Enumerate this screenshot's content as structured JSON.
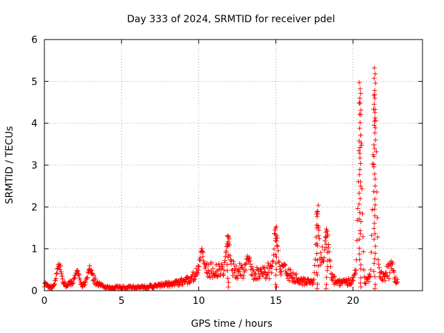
{
  "chart_data": {
    "type": "scatter",
    "title": "Day 333 of 2024, SRMTID for receiver pdel",
    "xlabel": "GPS time / hours",
    "ylabel": "SRMTID / TECUs",
    "xlim": [
      0,
      24.5
    ],
    "ylim": [
      0,
      6
    ],
    "xticks": [
      0,
      5,
      10,
      15,
      20
    ],
    "yticks": [
      0,
      1,
      2,
      3,
      4,
      5,
      6
    ],
    "grid": true,
    "marker": "+",
    "color": "#ff0000",
    "series": [
      {
        "name": "SRMTID",
        "envelope_note": "dense per-epoch samples; dominant levels and spikes",
        "baseline": [
          [
            0.0,
            0.15
          ],
          [
            0.5,
            0.08
          ],
          [
            0.9,
            0.15
          ],
          [
            1.5,
            0.15
          ],
          [
            2.0,
            0.2
          ],
          [
            2.5,
            0.12
          ],
          [
            3.0,
            0.35
          ],
          [
            3.5,
            0.15
          ],
          [
            4.0,
            0.08
          ],
          [
            5.0,
            0.08
          ],
          [
            6.0,
            0.08
          ],
          [
            7.0,
            0.1
          ],
          [
            8.0,
            0.15
          ],
          [
            8.8,
            0.2
          ],
          [
            9.5,
            0.3
          ],
          [
            10.0,
            0.45
          ],
          [
            10.5,
            0.5
          ],
          [
            11.0,
            0.5
          ],
          [
            11.5,
            0.45
          ],
          [
            12.0,
            0.6
          ],
          [
            12.5,
            0.45
          ],
          [
            13.0,
            0.5
          ],
          [
            13.5,
            0.4
          ],
          [
            14.0,
            0.4
          ],
          [
            14.5,
            0.5
          ],
          [
            15.0,
            0.35
          ],
          [
            15.5,
            0.45
          ],
          [
            16.0,
            0.35
          ],
          [
            16.5,
            0.25
          ],
          [
            17.0,
            0.2
          ],
          [
            17.5,
            0.2
          ],
          [
            17.8,
            0.8
          ],
          [
            18.2,
            0.8
          ],
          [
            18.6,
            0.3
          ],
          [
            19.0,
            0.2
          ],
          [
            19.5,
            0.2
          ],
          [
            20.0,
            0.25
          ],
          [
            20.3,
            0.5
          ],
          [
            20.8,
            0.25
          ],
          [
            21.2,
            0.35
          ],
          [
            21.6,
            0.5
          ],
          [
            22.0,
            0.35
          ],
          [
            22.5,
            0.55
          ],
          [
            22.9,
            0.18
          ]
        ],
        "spikes": [
          {
            "x": 0.95,
            "peak": 0.7
          },
          {
            "x": 2.1,
            "peak": 0.55
          },
          {
            "x": 2.95,
            "peak": 0.6
          },
          {
            "x": 10.2,
            "peak": 1.05
          },
          {
            "x": 11.9,
            "peak": 1.4
          },
          {
            "x": 13.2,
            "peak": 0.9
          },
          {
            "x": 15.0,
            "peak": 1.55
          },
          {
            "x": 15.5,
            "peak": 0.75
          },
          {
            "x": 17.7,
            "peak": 2.1
          },
          {
            "x": 18.3,
            "peak": 1.5
          },
          {
            "x": 20.45,
            "peak": 5.1
          },
          {
            "x": 21.4,
            "peak": 5.45
          }
        ]
      }
    ]
  }
}
